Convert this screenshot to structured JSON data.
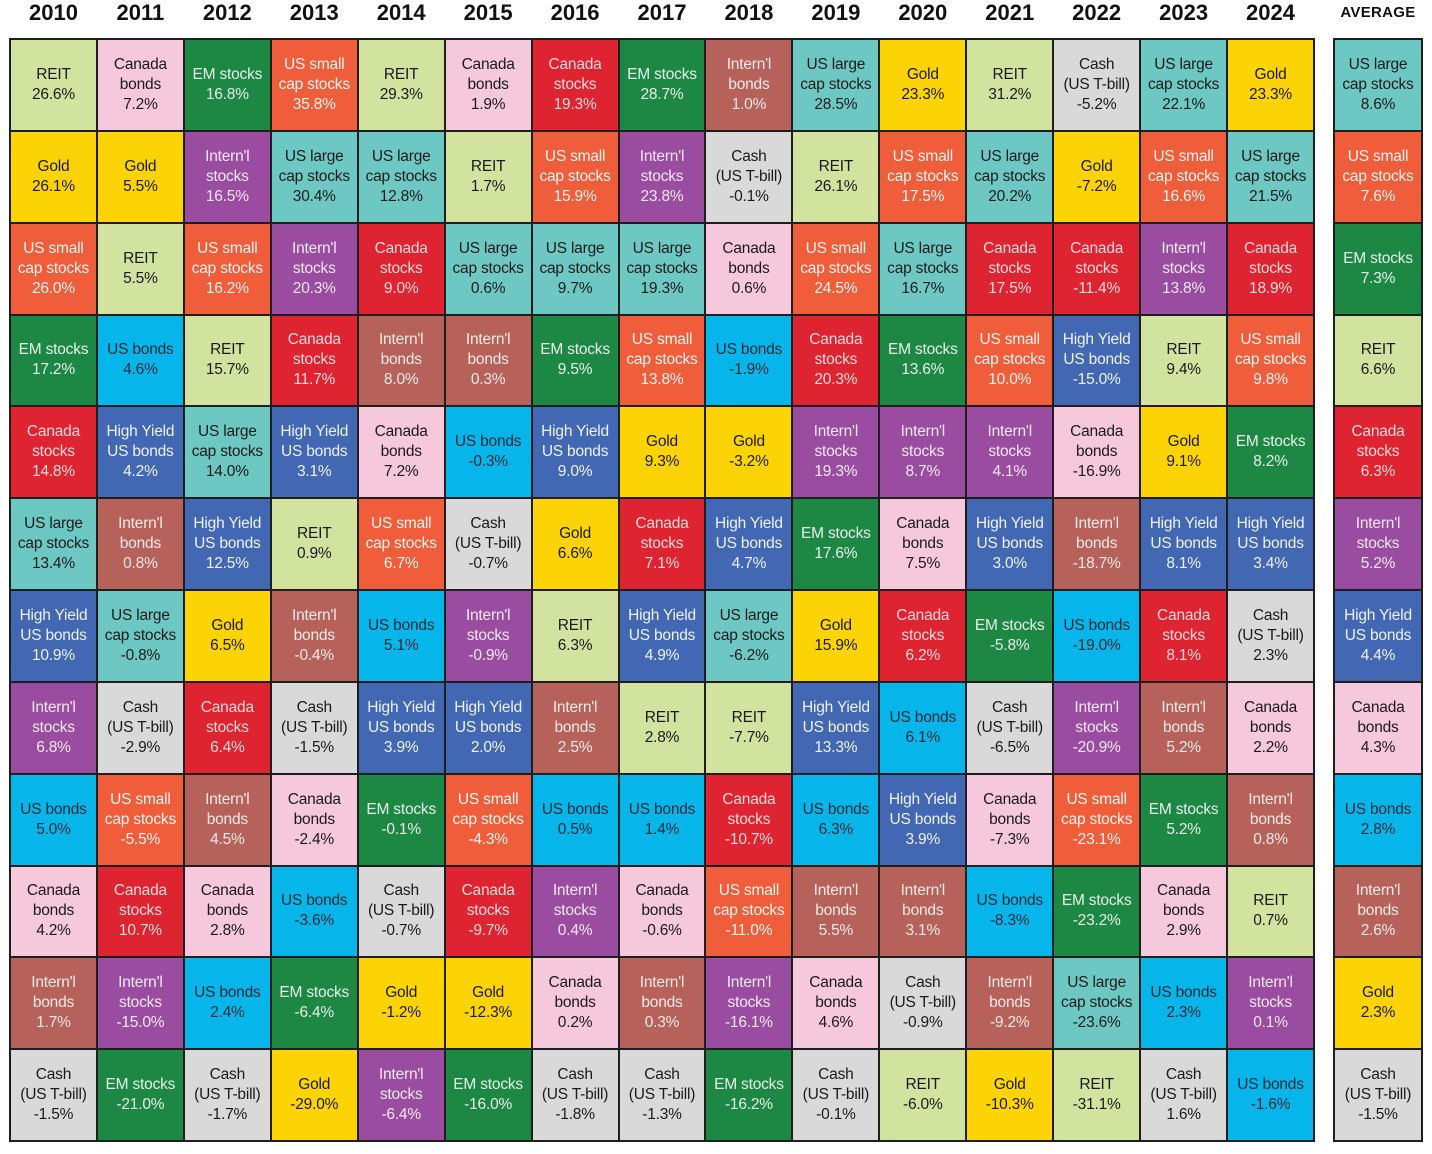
{
  "chart_data": {
    "type": "table",
    "years": [
      "2010",
      "2011",
      "2012",
      "2013",
      "2014",
      "2015",
      "2016",
      "2017",
      "2018",
      "2019",
      "2020",
      "2021",
      "2022",
      "2023",
      "2024"
    ],
    "average_label": "AVERAGE",
    "assets": {
      "reit": {
        "lines": [
          "REIT"
        ],
        "color": "#d2e3a0",
        "text": "#1a1a1a"
      },
      "cabond": {
        "lines": [
          "Canada",
          "bonds"
        ],
        "color": "#f6c8dc",
        "text": "#1a1a1a"
      },
      "em": {
        "lines": [
          "EM stocks"
        ],
        "color": "#1d8844",
        "text": "#e6f2e9"
      },
      "ussc": {
        "lines": [
          "US small",
          "cap stocks"
        ],
        "color": "#ef5d3b",
        "text": "#fff4ef"
      },
      "castk": {
        "lines": [
          "Canada",
          "stocks"
        ],
        "color": "#dd2430",
        "text": "#ffd9db"
      },
      "intb": {
        "lines": [
          "Intern'l",
          "bonds"
        ],
        "color": "#b6625a",
        "text": "#fbeae7"
      },
      "uslc": {
        "lines": [
          "US large",
          "cap stocks"
        ],
        "color": "#6dc8c4",
        "text": "#1a1a1a"
      },
      "gold": {
        "lines": [
          "Gold"
        ],
        "color": "#fcd405",
        "text": "#1a1a1a"
      },
      "cash": {
        "lines": [
          "Cash",
          "(US T-bill)"
        ],
        "color": "#d9d9d9",
        "text": "#1a1a1a"
      },
      "ints": {
        "lines": [
          "Intern'l",
          "stocks"
        ],
        "color": "#9a4da0",
        "text": "#f7e9f8"
      },
      "usb": {
        "lines": [
          "US bonds"
        ],
        "color": "#06b5ea",
        "text": "#0e2a38"
      },
      "hy": {
        "lines": [
          "High Yield",
          "US bonds"
        ],
        "color": "#4268b4",
        "text": "#eef2fb"
      }
    },
    "rows": [
      [
        [
          "reit",
          "26.6%"
        ],
        [
          "cabond",
          "7.2%"
        ],
        [
          "em",
          "16.8%"
        ],
        [
          "ussc",
          "35.8%"
        ],
        [
          "reit",
          "29.3%"
        ],
        [
          "cabond",
          "1.9%"
        ],
        [
          "castk",
          "19.3%"
        ],
        [
          "em",
          "28.7%"
        ],
        [
          "intb",
          "1.0%"
        ],
        [
          "uslc",
          "28.5%"
        ],
        [
          "gold",
          "23.3%"
        ],
        [
          "reit",
          "31.2%"
        ],
        [
          "cash",
          "-5.2%"
        ],
        [
          "uslc",
          "22.1%"
        ],
        [
          "gold",
          "23.3%"
        ]
      ],
      [
        [
          "gold",
          "26.1%"
        ],
        [
          "gold",
          "5.5%"
        ],
        [
          "ints",
          "16.5%"
        ],
        [
          "uslc",
          "30.4%"
        ],
        [
          "uslc",
          "12.8%"
        ],
        [
          "reit",
          "1.7%"
        ],
        [
          "ussc",
          "15.9%"
        ],
        [
          "ints",
          "23.8%"
        ],
        [
          "cash",
          "-0.1%"
        ],
        [
          "reit",
          "26.1%"
        ],
        [
          "ussc",
          "17.5%"
        ],
        [
          "uslc",
          "20.2%"
        ],
        [
          "gold",
          "-7.2%"
        ],
        [
          "ussc",
          "16.6%"
        ],
        [
          "uslc",
          "21.5%"
        ]
      ],
      [
        [
          "ussc",
          "26.0%"
        ],
        [
          "reit",
          "5.5%"
        ],
        [
          "ussc",
          "16.2%"
        ],
        [
          "ints",
          "20.3%"
        ],
        [
          "castk",
          "9.0%"
        ],
        [
          "uslc",
          "0.6%"
        ],
        [
          "uslc",
          "9.7%"
        ],
        [
          "uslc",
          "19.3%"
        ],
        [
          "cabond",
          "0.6%"
        ],
        [
          "ussc",
          "24.5%"
        ],
        [
          "uslc",
          "16.7%"
        ],
        [
          "castk",
          "17.5%"
        ],
        [
          "castk",
          "-11.4%"
        ],
        [
          "ints",
          "13.8%"
        ],
        [
          "castk",
          "18.9%"
        ]
      ],
      [
        [
          "em",
          "17.2%"
        ],
        [
          "usb",
          "4.6%"
        ],
        [
          "reit",
          "15.7%"
        ],
        [
          "castk",
          "11.7%"
        ],
        [
          "intb",
          "8.0%"
        ],
        [
          "intb",
          "0.3%"
        ],
        [
          "em",
          "9.5%"
        ],
        [
          "ussc",
          "13.8%"
        ],
        [
          "usb",
          "-1.9%"
        ],
        [
          "castk",
          "20.3%"
        ],
        [
          "em",
          "13.6%"
        ],
        [
          "ussc",
          "10.0%"
        ],
        [
          "hy",
          "-15.0%"
        ],
        [
          "reit",
          "9.4%"
        ],
        [
          "ussc",
          "9.8%"
        ]
      ],
      [
        [
          "castk",
          "14.8%"
        ],
        [
          "hy",
          "4.2%"
        ],
        [
          "uslc",
          "14.0%"
        ],
        [
          "hy",
          "3.1%"
        ],
        [
          "cabond",
          "7.2%"
        ],
        [
          "usb",
          "-0.3%"
        ],
        [
          "hy",
          "9.0%"
        ],
        [
          "gold",
          "9.3%"
        ],
        [
          "gold",
          "-3.2%"
        ],
        [
          "ints",
          "19.3%"
        ],
        [
          "ints",
          "8.7%"
        ],
        [
          "ints",
          "4.1%"
        ],
        [
          "cabond",
          "-16.9%"
        ],
        [
          "gold",
          "9.1%"
        ],
        [
          "em",
          "8.2%"
        ]
      ],
      [
        [
          "uslc",
          "13.4%"
        ],
        [
          "intb",
          "0.8%"
        ],
        [
          "hy",
          "12.5%"
        ],
        [
          "reit",
          "0.9%"
        ],
        [
          "ussc",
          "6.7%"
        ],
        [
          "cash",
          "-0.7%"
        ],
        [
          "gold",
          "6.6%"
        ],
        [
          "castk",
          "7.1%"
        ],
        [
          "hy",
          "4.7%"
        ],
        [
          "em",
          "17.6%"
        ],
        [
          "cabond",
          "7.5%"
        ],
        [
          "hy",
          "3.0%"
        ],
        [
          "intb",
          "-18.7%"
        ],
        [
          "hy",
          "8.1%"
        ],
        [
          "hy",
          "3.4%"
        ]
      ],
      [
        [
          "hy",
          "10.9%"
        ],
        [
          "uslc",
          "-0.8%"
        ],
        [
          "gold",
          "6.5%"
        ],
        [
          "intb",
          "-0.4%"
        ],
        [
          "usb",
          "5.1%"
        ],
        [
          "ints",
          "-0.9%"
        ],
        [
          "reit",
          "6.3%"
        ],
        [
          "hy",
          "4.9%"
        ],
        [
          "uslc",
          "-6.2%"
        ],
        [
          "gold",
          "15.9%"
        ],
        [
          "castk",
          "6.2%"
        ],
        [
          "em",
          "-5.8%"
        ],
        [
          "usb",
          "-19.0%"
        ],
        [
          "castk",
          "8.1%"
        ],
        [
          "cash",
          "2.3%"
        ]
      ],
      [
        [
          "ints",
          "6.8%"
        ],
        [
          "cash",
          "-2.9%"
        ],
        [
          "castk",
          "6.4%"
        ],
        [
          "cash",
          "-1.5%"
        ],
        [
          "hy",
          "3.9%"
        ],
        [
          "hy",
          "2.0%"
        ],
        [
          "intb",
          "2.5%"
        ],
        [
          "reit",
          "2.8%"
        ],
        [
          "reit",
          "-7.7%"
        ],
        [
          "hy",
          "13.3%"
        ],
        [
          "usb",
          "6.1%"
        ],
        [
          "cash",
          "-6.5%"
        ],
        [
          "ints",
          "-20.9%"
        ],
        [
          "intb",
          "5.2%"
        ],
        [
          "cabond",
          "2.2%"
        ]
      ],
      [
        [
          "usb",
          "5.0%"
        ],
        [
          "ussc",
          "-5.5%"
        ],
        [
          "intb",
          "4.5%"
        ],
        [
          "cabond",
          "-2.4%"
        ],
        [
          "em",
          "-0.1%"
        ],
        [
          "ussc",
          "-4.3%"
        ],
        [
          "usb",
          "0.5%"
        ],
        [
          "usb",
          "1.4%"
        ],
        [
          "castk",
          "-10.7%"
        ],
        [
          "usb",
          "6.3%"
        ],
        [
          "hy",
          "3.9%"
        ],
        [
          "cabond",
          "-7.3%"
        ],
        [
          "ussc",
          "-23.1%"
        ],
        [
          "em",
          "5.2%"
        ],
        [
          "intb",
          "0.8%"
        ]
      ],
      [
        [
          "cabond",
          "4.2%"
        ],
        [
          "castk",
          "10.7%"
        ],
        [
          "cabond",
          "2.8%"
        ],
        [
          "usb",
          "-3.6%"
        ],
        [
          "cash",
          "-0.7%"
        ],
        [
          "castk",
          "-9.7%"
        ],
        [
          "ints",
          "0.4%"
        ],
        [
          "cabond",
          "-0.6%"
        ],
        [
          "ussc",
          "-11.0%"
        ],
        [
          "intb",
          "5.5%"
        ],
        [
          "intb",
          "3.1%"
        ],
        [
          "usb",
          "-8.3%"
        ],
        [
          "em",
          "-23.2%"
        ],
        [
          "cabond",
          "2.9%"
        ],
        [
          "reit",
          "0.7%"
        ]
      ],
      [
        [
          "intb",
          "1.7%"
        ],
        [
          "ints",
          "-15.0%"
        ],
        [
          "usb",
          "2.4%"
        ],
        [
          "em",
          "-6.4%"
        ],
        [
          "gold",
          "-1.2%"
        ],
        [
          "gold",
          "-12.3%"
        ],
        [
          "cabond",
          "0.2%"
        ],
        [
          "intb",
          "0.3%"
        ],
        [
          "ints",
          "-16.1%"
        ],
        [
          "cabond",
          "4.6%"
        ],
        [
          "cash",
          "-0.9%"
        ],
        [
          "intb",
          "-9.2%"
        ],
        [
          "uslc",
          "-23.6%"
        ],
        [
          "usb",
          "2.3%"
        ],
        [
          "ints",
          "0.1%"
        ]
      ],
      [
        [
          "cash",
          "-1.5%"
        ],
        [
          "em",
          "-21.0%"
        ],
        [
          "cash",
          "-1.7%"
        ],
        [
          "gold",
          "-29.0%"
        ],
        [
          "ints",
          "-6.4%"
        ],
        [
          "em",
          "-16.0%"
        ],
        [
          "cash",
          "-1.8%"
        ],
        [
          "cash",
          "-1.3%"
        ],
        [
          "em",
          "-16.2%"
        ],
        [
          "cash",
          "-0.1%"
        ],
        [
          "reit",
          "-6.0%"
        ],
        [
          "gold",
          "-10.3%"
        ],
        [
          "reit",
          "-31.1%"
        ],
        [
          "cash",
          "1.6%"
        ],
        [
          "usb",
          "-1.6%"
        ]
      ]
    ],
    "average": [
      [
        "uslc",
        "8.6%"
      ],
      [
        "ussc",
        "7.6%"
      ],
      [
        "em",
        "7.3%"
      ],
      [
        "reit",
        "6.6%"
      ],
      [
        "castk",
        "6.3%"
      ],
      [
        "ints",
        "5.2%"
      ],
      [
        "hy",
        "4.4%"
      ],
      [
        "cabond",
        "4.3%"
      ],
      [
        "usb",
        "2.8%"
      ],
      [
        "intb",
        "2.6%"
      ],
      [
        "gold",
        "2.3%"
      ],
      [
        "cash",
        "-1.5%"
      ]
    ]
  }
}
